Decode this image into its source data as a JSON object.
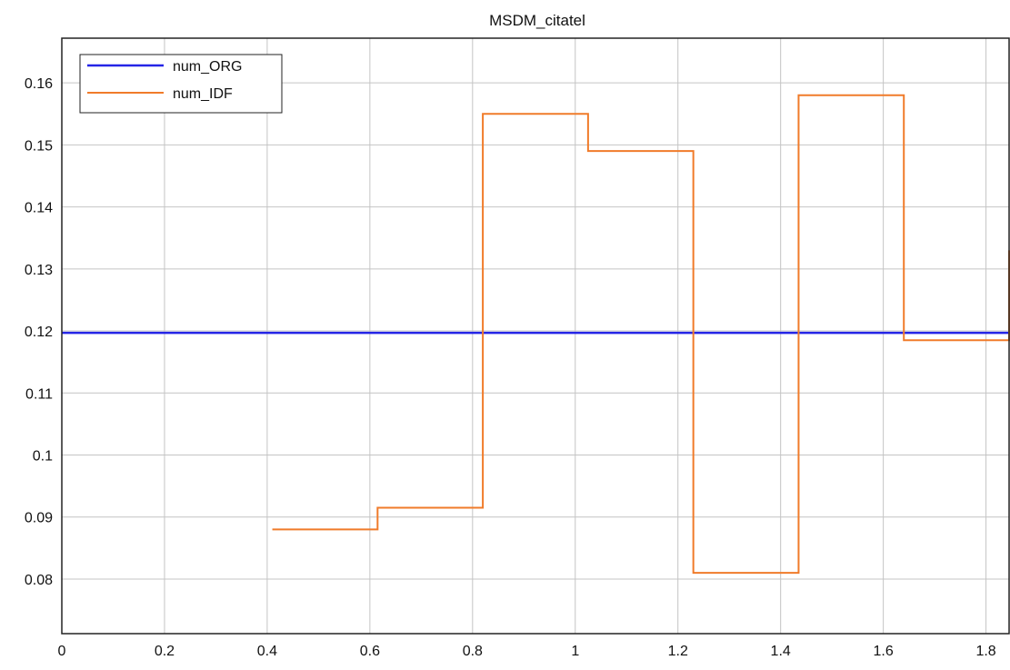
{
  "chart_data": {
    "type": "line",
    "title": "MSDM_citatel",
    "xlabel": "",
    "ylabel": "",
    "xlim": [
      0,
      1.845
    ],
    "ylim": [
      0.0712,
      0.1672
    ],
    "x_ticks": [
      0,
      0.2,
      0.4,
      0.6,
      0.8,
      1,
      1.2,
      1.4,
      1.6,
      1.8
    ],
    "x_tick_labels": [
      "0",
      "0.2",
      "0.4",
      "0.6",
      "0.8",
      "1",
      "1.2",
      "1.4",
      "1.6",
      "1.8"
    ],
    "y_ticks": [
      0.08,
      0.09,
      0.1,
      0.11,
      0.12,
      0.13,
      0.14,
      0.15,
      0.16
    ],
    "y_tick_labels": [
      "0.08",
      "0.09",
      "0.1",
      "0.11",
      "0.12",
      "0.13",
      "0.14",
      "0.15",
      "0.16"
    ],
    "grid": true,
    "legend_position": "top-left",
    "series": [
      {
        "name": "num_ORG",
        "color": "#2525e6",
        "step": false,
        "x": [
          0,
          1.845
        ],
        "y": [
          0.1197,
          0.1197
        ]
      },
      {
        "name": "num_IDF",
        "color": "#f07b2a",
        "step": true,
        "x": [
          0.41,
          0.615,
          0.82,
          1.025,
          1.23,
          1.435,
          1.64,
          1.845
        ],
        "y": [
          0.088,
          0.0915,
          0.155,
          0.149,
          0.081,
          0.158,
          0.1185,
          0.133
        ]
      }
    ]
  }
}
